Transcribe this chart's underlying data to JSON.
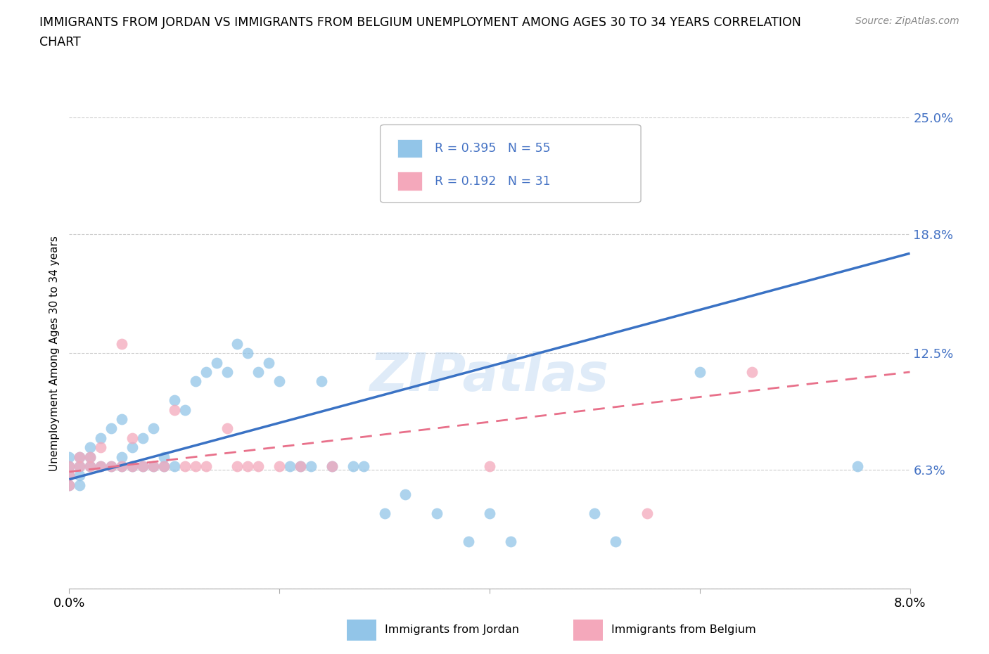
{
  "title_line1": "IMMIGRANTS FROM JORDAN VS IMMIGRANTS FROM BELGIUM UNEMPLOYMENT AMONG AGES 30 TO 34 YEARS CORRELATION",
  "title_line2": "CHART",
  "source": "Source: ZipAtlas.com",
  "ylabel": "Unemployment Among Ages 30 to 34 years",
  "xlim": [
    0.0,
    0.08
  ],
  "ylim": [
    0.0,
    0.25
  ],
  "yticks": [
    0.0,
    0.063,
    0.125,
    0.188,
    0.25
  ],
  "ytick_labels": [
    "",
    "6.3%",
    "12.5%",
    "18.8%",
    "25.0%"
  ],
  "xticks": [
    0.0,
    0.02,
    0.04,
    0.06,
    0.08
  ],
  "xtick_labels": [
    "0.0%",
    "",
    "",
    "",
    "8.0%"
  ],
  "jordan_color": "#92C5E8",
  "belgium_color": "#F4A8BB",
  "jordan_R": 0.395,
  "jordan_N": 55,
  "belgium_R": 0.192,
  "belgium_N": 31,
  "jordan_line_color": "#3A72C4",
  "belgium_line_color": "#E8708A",
  "background_color": "#FFFFFF",
  "grid_color": "#CCCCCC",
  "watermark": "ZIPatlas",
  "jordan_x": [
    0.0,
    0.0,
    0.0,
    0.0,
    0.001,
    0.001,
    0.001,
    0.001,
    0.002,
    0.002,
    0.002,
    0.003,
    0.003,
    0.004,
    0.004,
    0.005,
    0.005,
    0.005,
    0.006,
    0.006,
    0.007,
    0.007,
    0.008,
    0.008,
    0.009,
    0.009,
    0.01,
    0.01,
    0.011,
    0.012,
    0.013,
    0.014,
    0.015,
    0.016,
    0.017,
    0.018,
    0.019,
    0.02,
    0.021,
    0.022,
    0.023,
    0.024,
    0.025,
    0.027,
    0.028,
    0.03,
    0.032,
    0.035,
    0.038,
    0.04,
    0.042,
    0.05,
    0.052,
    0.06,
    0.075
  ],
  "jordan_y": [
    0.065,
    0.07,
    0.06,
    0.055,
    0.07,
    0.065,
    0.06,
    0.055,
    0.065,
    0.07,
    0.075,
    0.08,
    0.065,
    0.085,
    0.065,
    0.09,
    0.065,
    0.07,
    0.075,
    0.065,
    0.08,
    0.065,
    0.085,
    0.065,
    0.065,
    0.07,
    0.1,
    0.065,
    0.095,
    0.11,
    0.115,
    0.12,
    0.115,
    0.13,
    0.125,
    0.115,
    0.12,
    0.11,
    0.065,
    0.065,
    0.065,
    0.11,
    0.065,
    0.065,
    0.065,
    0.04,
    0.05,
    0.04,
    0.025,
    0.04,
    0.025,
    0.04,
    0.025,
    0.115,
    0.065
  ],
  "belgium_x": [
    0.0,
    0.0,
    0.0,
    0.001,
    0.001,
    0.002,
    0.002,
    0.003,
    0.003,
    0.004,
    0.005,
    0.005,
    0.006,
    0.006,
    0.007,
    0.008,
    0.009,
    0.01,
    0.011,
    0.012,
    0.013,
    0.015,
    0.016,
    0.017,
    0.018,
    0.02,
    0.022,
    0.025,
    0.04,
    0.055,
    0.065
  ],
  "belgium_y": [
    0.065,
    0.06,
    0.055,
    0.065,
    0.07,
    0.065,
    0.07,
    0.075,
    0.065,
    0.065,
    0.13,
    0.065,
    0.065,
    0.08,
    0.065,
    0.065,
    0.065,
    0.095,
    0.065,
    0.065,
    0.065,
    0.085,
    0.065,
    0.065,
    0.065,
    0.065,
    0.065,
    0.065,
    0.065,
    0.04,
    0.115
  ],
  "jordan_line_x": [
    0.0,
    0.08
  ],
  "jordan_line_y": [
    0.058,
    0.178
  ],
  "belgium_line_x": [
    0.0,
    0.08
  ],
  "belgium_line_y": [
    0.062,
    0.115
  ],
  "legend_jordan_text": "R = 0.395   N = 55",
  "legend_belgium_text": "R = 0.192   N = 31",
  "bottom_legend_jordan": "Immigrants from Jordan",
  "bottom_legend_belgium": "Immigrants from Belgium"
}
